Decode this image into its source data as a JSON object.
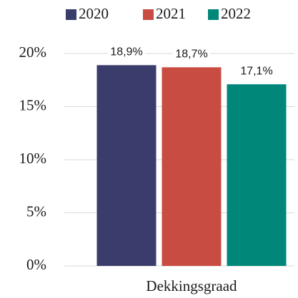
{
  "chart_data": {
    "type": "bar",
    "categories": [
      "Dekkingsgraad"
    ],
    "series": [
      {
        "name": "2020",
        "color": "#3a3d6b",
        "values": [
          18.9
        ],
        "value_labels": [
          "18,9%"
        ]
      },
      {
        "name": "2021",
        "color": "#c94c43",
        "values": [
          18.7
        ],
        "value_labels": [
          "18,7%"
        ]
      },
      {
        "name": "2022",
        "color": "#00877a",
        "values": [
          17.1
        ],
        "value_labels": [
          "17,1%"
        ]
      }
    ],
    "ylim": [
      0,
      20
    ],
    "yticks": [
      {
        "value": 0,
        "label": "0%"
      },
      {
        "value": 5,
        "label": "5%"
      },
      {
        "value": 10,
        "label": "10%"
      },
      {
        "value": 15,
        "label": "15%"
      },
      {
        "value": 20,
        "label": "20%"
      }
    ],
    "grid": true,
    "legend": "top"
  }
}
